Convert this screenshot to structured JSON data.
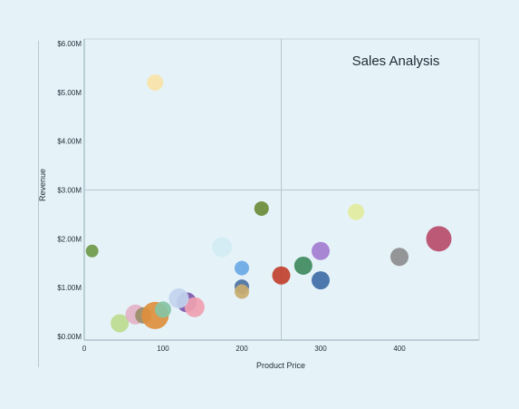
{
  "chart_data": {
    "type": "scatter",
    "title": "Sales Analysis",
    "xlabel": "Product Price",
    "ylabel": "Revenue",
    "xlim": [
      0,
      500
    ],
    "ylim": [
      0,
      6000000
    ],
    "x_ticks": [
      0,
      100,
      200,
      300,
      400
    ],
    "x_tick_labels": [
      "0",
      "100",
      "200",
      "300",
      "400"
    ],
    "y_ticks": [
      0,
      1000000,
      2000000,
      3000000,
      4000000,
      5000000,
      6000000
    ],
    "y_tick_labels": [
      "$0.00M",
      "$1.00M",
      "$2.00M",
      "$3.00M",
      "$4.00M",
      "$5.00M",
      "$6.00M"
    ],
    "quadrant_lines": {
      "x": 250,
      "y": 3000000
    },
    "grid": false,
    "points": [
      {
        "x": 90,
        "y": 5200000,
        "size": 9,
        "color": "#f8e3a8"
      },
      {
        "x": 10,
        "y": 1750000,
        "size": 7,
        "color": "#6f9a4a"
      },
      {
        "x": 225,
        "y": 2620000,
        "size": 8,
        "color": "#6d8c38"
      },
      {
        "x": 175,
        "y": 1830000,
        "size": 11,
        "color": "#d3ecf3"
      },
      {
        "x": 200,
        "y": 1400000,
        "size": 8,
        "color": "#6aa9e6"
      },
      {
        "x": 200,
        "y": 1020000,
        "size": 8,
        "color": "#4c72a3"
      },
      {
        "x": 200,
        "y": 920000,
        "size": 8,
        "color": "#c9ad6e"
      },
      {
        "x": 250,
        "y": 1250000,
        "size": 10,
        "color": "#c2412f"
      },
      {
        "x": 278,
        "y": 1450000,
        "size": 10,
        "color": "#3f8a5e"
      },
      {
        "x": 300,
        "y": 1750000,
        "size": 10,
        "color": "#a37dd0"
      },
      {
        "x": 300,
        "y": 1150000,
        "size": 10,
        "color": "#3f6ea6"
      },
      {
        "x": 345,
        "y": 2550000,
        "size": 9,
        "color": "#e3eb9c"
      },
      {
        "x": 400,
        "y": 1630000,
        "size": 10,
        "color": "#8d8d8d"
      },
      {
        "x": 450,
        "y": 2000000,
        "size": 14,
        "color": "#b84c6a"
      },
      {
        "x": 45,
        "y": 270000,
        "size": 10,
        "color": "#bddc8e"
      },
      {
        "x": 65,
        "y": 450000,
        "size": 11,
        "color": "#e3b3c6"
      },
      {
        "x": 75,
        "y": 430000,
        "size": 9,
        "color": "#9a8d68"
      },
      {
        "x": 90,
        "y": 430000,
        "size": 15,
        "color": "#de8f3c"
      },
      {
        "x": 100,
        "y": 550000,
        "size": 9,
        "color": "#85c4a5"
      },
      {
        "x": 130,
        "y": 700000,
        "size": 11,
        "color": "#7d59ad"
      },
      {
        "x": 140,
        "y": 600000,
        "size": 11,
        "color": "#f0a0b0"
      },
      {
        "x": 120,
        "y": 780000,
        "size": 11,
        "color": "#c3d4ee"
      }
    ]
  }
}
